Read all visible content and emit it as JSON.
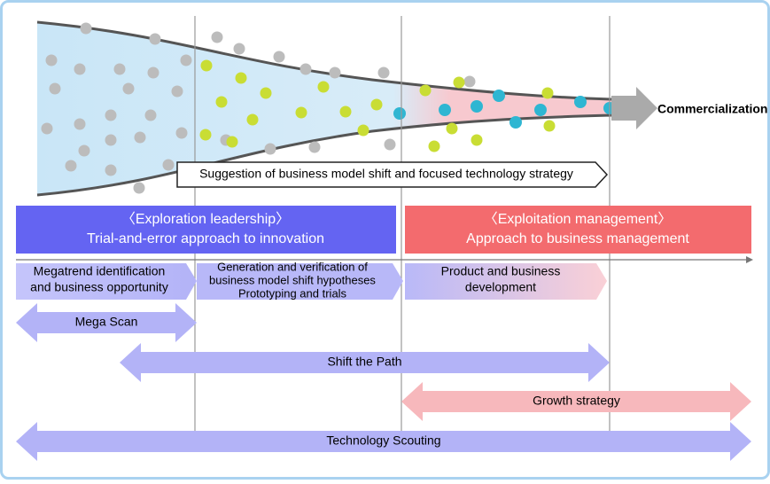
{
  "funnel": {
    "end_label": "Commercialization",
    "strategy_arrow": "Suggestion of business model shift and focused technology strategy"
  },
  "phases": [
    {
      "title": "〈Exploration leadership〉",
      "subtitle": "Trial-and-error approach to innovation"
    },
    {
      "title": "〈Exploitation management〉",
      "subtitle": "Approach to business management"
    }
  ],
  "steps": [
    {
      "lines": [
        "Megatrend identification",
        "and business opportunity"
      ]
    },
    {
      "lines": [
        "Generation and verification of",
        "business model shift hypotheses",
        "Prototyping and trials"
      ]
    },
    {
      "lines": [
        "Product and business",
        "development"
      ]
    }
  ],
  "activities": [
    "Mega Scan",
    "Shift the Path",
    "Growth strategy",
    "Technology Scouting"
  ]
}
